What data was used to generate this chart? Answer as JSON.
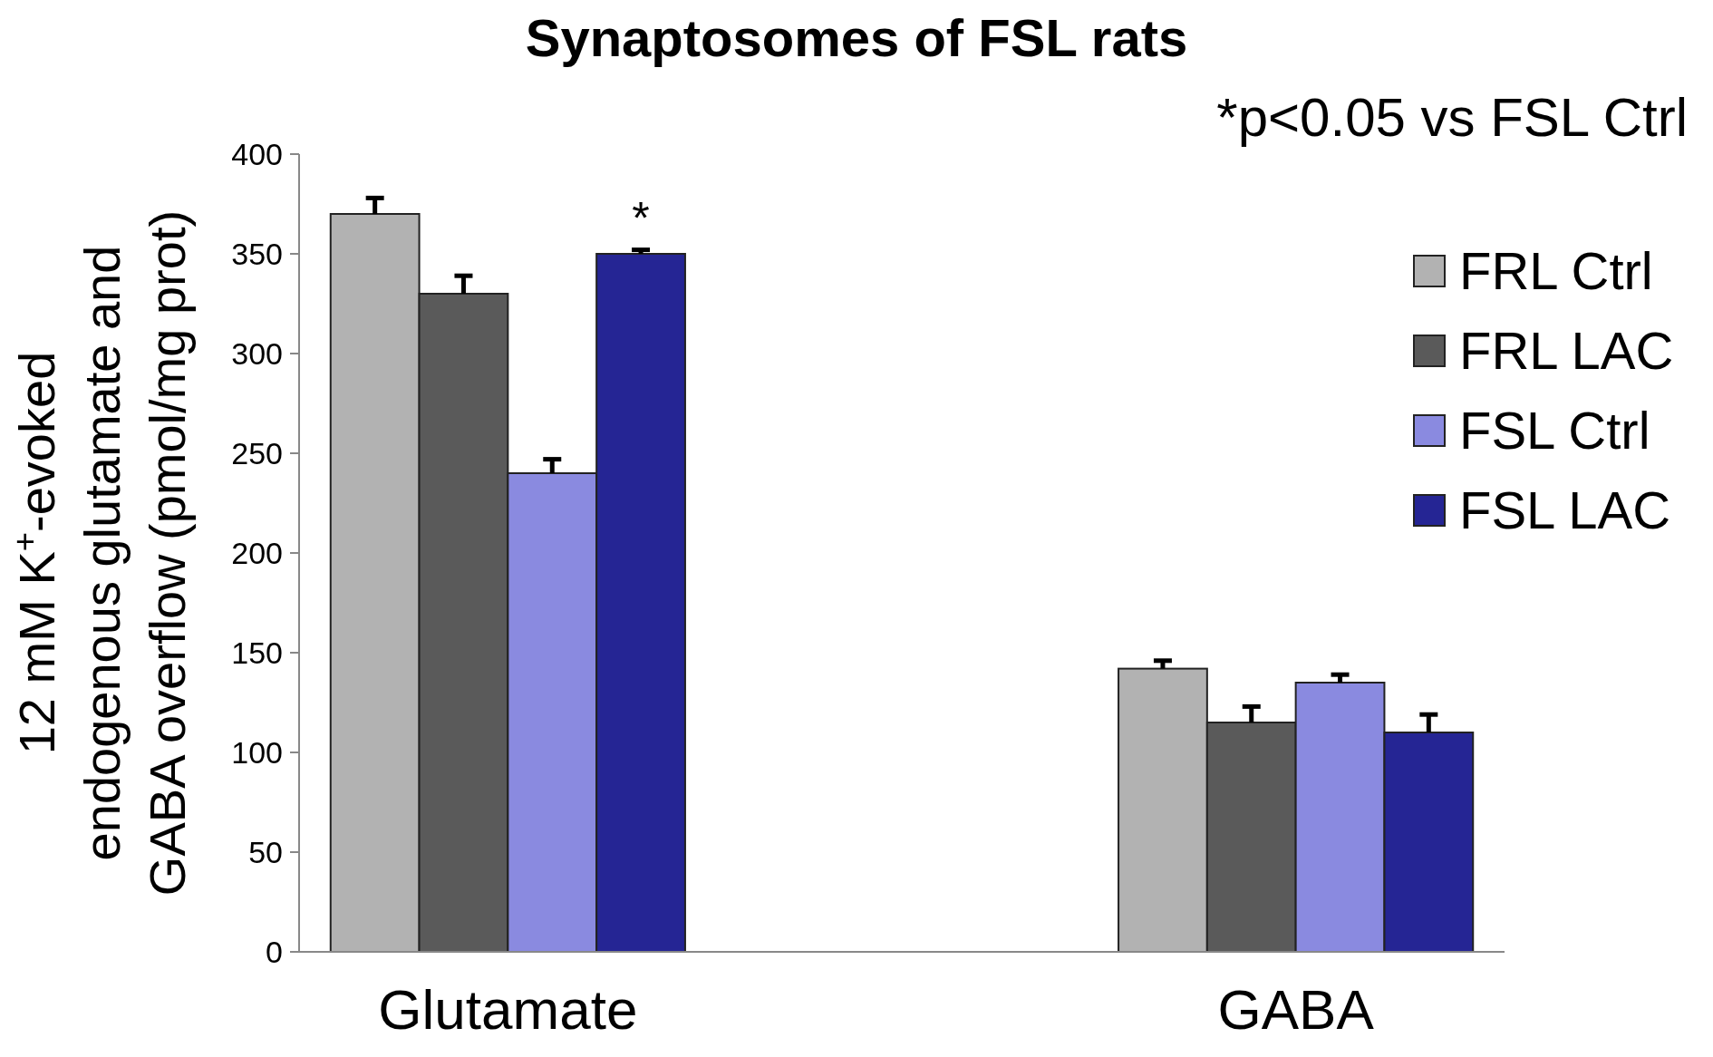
{
  "chart_data": {
    "type": "bar",
    "title": "Synaptosomes of FSL rats",
    "ylabel": "12 mM K$^{+}$-evoked\nendogenous glutamate and\nGABA overflow (pmol/mg prot)",
    "categories": [
      "Glutamate",
      "GABA"
    ],
    "series": [
      {
        "name": "FRL Ctrl",
        "color": "#b2b2b2",
        "values": [
          370,
          142
        ],
        "errors": [
          [
            370,
            378
          ],
          [
            142,
            146
          ]
        ]
      },
      {
        "name": "FRL LAC",
        "color": "#5a5a5a",
        "values": [
          330,
          115
        ],
        "errors": [
          [
            330,
            339
          ],
          [
            115,
            123
          ]
        ]
      },
      {
        "name": "FSL Ctrl",
        "color": "#8a8ae0",
        "values": [
          240,
          135
        ],
        "errors": [
          [
            240,
            247
          ],
          [
            135,
            139
          ]
        ]
      },
      {
        "name": "FSL LAC",
        "color": "#252594",
        "values": [
          350,
          110
        ],
        "errors": [
          [
            350,
            352
          ],
          [
            110,
            119
          ]
        ],
        "value_labels": [
          "*",
          null
        ]
      }
    ],
    "ylim": [
      0,
      400
    ],
    "yticks": [
      0,
      50,
      100,
      150,
      200,
      250,
      300,
      350,
      400
    ],
    "grid": false,
    "legend": "right",
    "annotations": [
      "*p<0.05 vs FSL Ctrl"
    ]
  }
}
